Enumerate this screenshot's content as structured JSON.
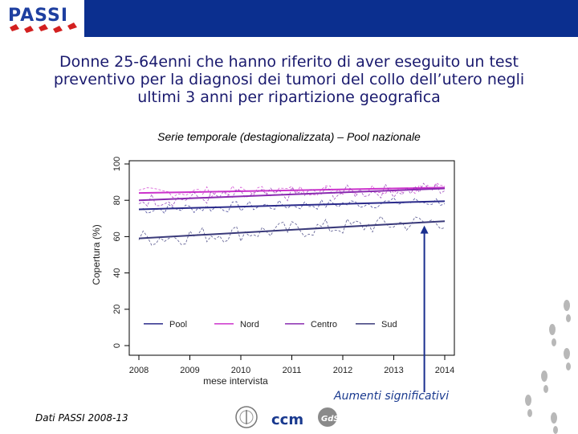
{
  "header": {
    "logo_text": "PASSI"
  },
  "slide": {
    "title_lines": [
      "Donne 25-64enni che hanno riferito di aver eseguito un test",
      "preventivo per la diagnosi dei tumori del collo dell’utero negli",
      "ultimi 3 anni per ripartizione geografica"
    ],
    "subtitle": "Serie temporale (destagionalizzata) – Pool nazionale",
    "annotation": "Aumenti significativi",
    "footer": "Dati PASSI 2008-13",
    "partner_logos": [
      "ccm",
      "GdSps"
    ]
  },
  "colors": {
    "header_blue": "#0b2f8f",
    "title_text": "#1a1a6e",
    "arrow": "#1a2f8f"
  },
  "chart_data": {
    "type": "line",
    "xlabel": "mese intervista",
    "ylabel": "Copertura (%)",
    "xlim": [
      2008,
      2014
    ],
    "ylim": [
      0,
      100
    ],
    "x_ticks": [
      "2008",
      "2009",
      "2010",
      "2011",
      "2012",
      "2013",
      "2014"
    ],
    "y_ticks": [
      "0",
      "20",
      "40",
      "60",
      "80",
      "100"
    ],
    "legend_placement": "bottom-inside",
    "annotation_arrow_x": 2013.6,
    "series": [
      {
        "name": "Pool",
        "color": "#2a2a8a",
        "trend_start": 75,
        "trend_end": 79.5,
        "fluctuation": 3
      },
      {
        "name": "Nord",
        "color": "#cc33cc",
        "trend_start": 84,
        "trend_end": 87,
        "fluctuation": 3
      },
      {
        "name": "Centro",
        "color": "#8a2bb0",
        "trend_start": 80,
        "trend_end": 86.5,
        "fluctuation": 4
      },
      {
        "name": "Sud",
        "color": "#3a3a7a",
        "trend_start": 59,
        "trend_end": 68.5,
        "fluctuation": 5
      }
    ]
  }
}
